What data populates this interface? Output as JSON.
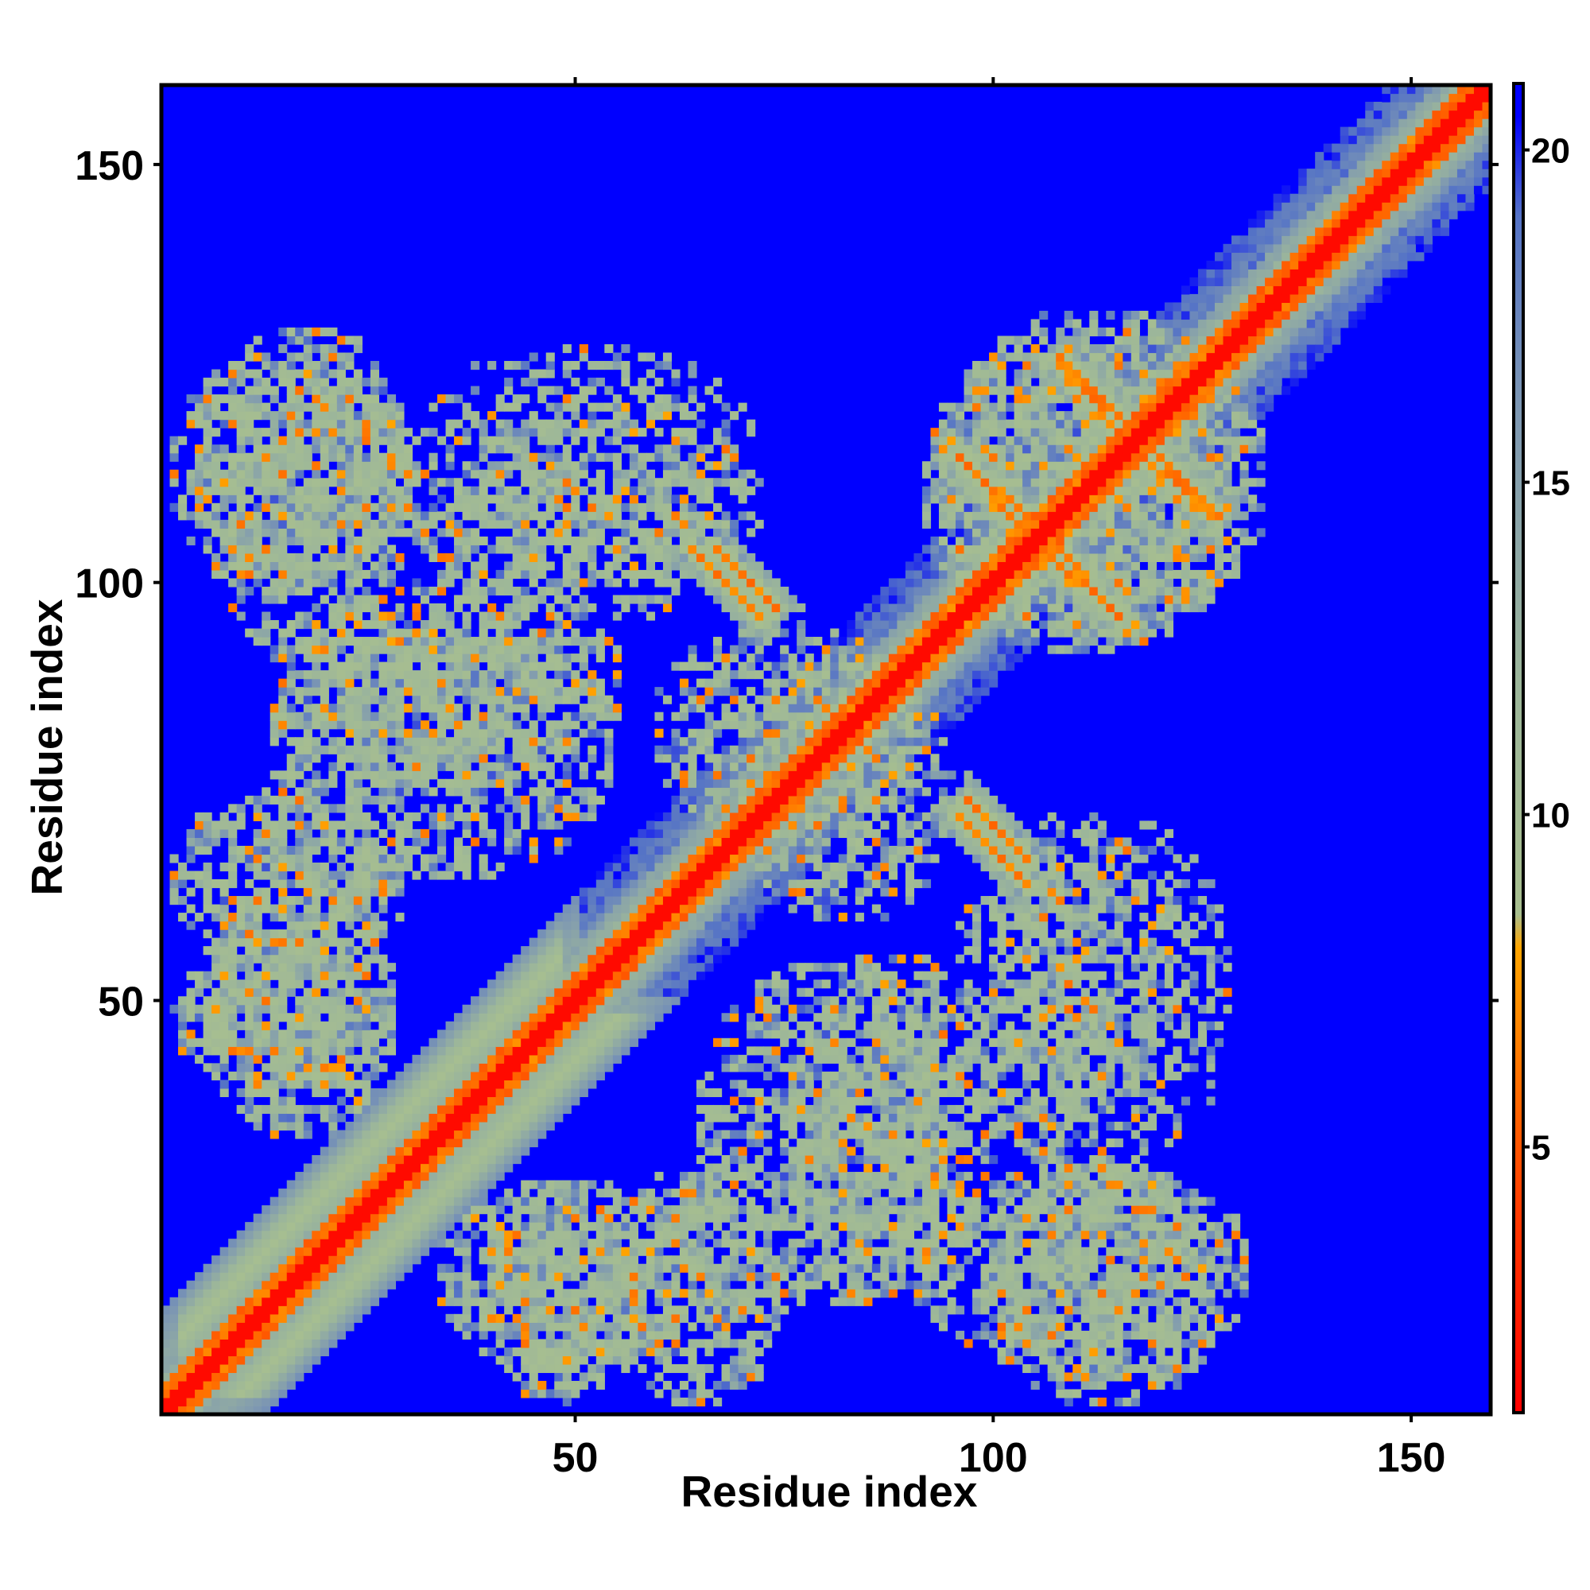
{
  "chart_data": {
    "type": "heatmap",
    "title": "",
    "xlabel": "Residue index",
    "ylabel": "Residue index",
    "xlim": [
      0.5,
      159.5
    ],
    "ylim": [
      0.5,
      159.5
    ],
    "n_residues": 159,
    "x_ticks": [
      50,
      100,
      150
    ],
    "y_ticks": [
      50,
      100,
      150
    ],
    "x_tick_labels": [
      "50",
      "100",
      "150"
    ],
    "y_tick_labels": [
      "50",
      "100",
      "150"
    ],
    "colorbar": {
      "range": [
        1,
        21
      ],
      "ticks": [
        5,
        10,
        15,
        20
      ],
      "tick_labels": [
        "5",
        "10",
        "15",
        "20"
      ],
      "stops": [
        {
          "value": 1,
          "color": "#ff0000"
        },
        {
          "value": 4,
          "color": "#ff3a00"
        },
        {
          "value": 8,
          "color": "#ffa500"
        },
        {
          "value": 8.5,
          "color": "#a8bf8f"
        },
        {
          "value": 12,
          "color": "#9cb69a"
        },
        {
          "value": 16,
          "color": "#7e98b2"
        },
        {
          "value": 19,
          "color": "#5573c6"
        },
        {
          "value": 20.5,
          "color": "#0000ff"
        }
      ]
    },
    "background_value": 21,
    "grid": false,
    "legend": "colorbar-right",
    "contact_features": [
      {
        "type": "diagonal",
        "from": 1,
        "to": 159,
        "width": 3.5
      },
      {
        "type": "band",
        "x_center": 18,
        "y_center": 18,
        "start": 2,
        "end": 48,
        "offset": 7,
        "width": 4
      },
      {
        "type": "antiparallel",
        "x_range": [
          64,
          72
        ],
        "y_range": [
          104,
          96
        ]
      },
      {
        "type": "antiparallel",
        "x_range": [
          97,
          106
        ],
        "y_range": [
          114,
          106
        ]
      },
      {
        "type": "antiparallel",
        "x_range": [
          106,
          115
        ],
        "y_range": [
          104,
          96
        ]
      },
      {
        "type": "antiparallel",
        "x_range": [
          108,
          118
        ],
        "y_range": [
          127,
          117
        ]
      },
      {
        "type": "antiparallel",
        "x_range": [
          115,
          126
        ],
        "y_range": [
          118,
          108
        ]
      },
      {
        "type": "parallel",
        "x_range": [
          97,
          104
        ],
        "y_range": [
          74,
          67
        ]
      },
      {
        "type": "region",
        "x_range": [
          2,
          30
        ],
        "y_range": [
          99,
          127
        ],
        "density": 0.75
      },
      {
        "type": "region",
        "x_range": [
          2,
          30
        ],
        "y_range": [
          55,
          75
        ],
        "density": 0.7
      },
      {
        "type": "region",
        "x_range": [
          2,
          28
        ],
        "y_range": [
          40,
          56
        ],
        "density": 0.7
      },
      {
        "type": "region",
        "x_range": [
          14,
          55
        ],
        "y_range": [
          76,
          100
        ],
        "density": 0.65
      },
      {
        "type": "region",
        "x_range": [
          30,
          70
        ],
        "y_range": [
          99,
          122
        ],
        "density": 0.5
      },
      {
        "type": "region",
        "x_range": [
          34,
          66
        ],
        "y_range": [
          6,
          28
        ],
        "density": 0.7
      },
      {
        "type": "region",
        "x_range": [
          65,
          96
        ],
        "y_range": [
          14,
          54
        ],
        "density": 0.65
      },
      {
        "type": "region",
        "x_range": [
          92,
          130
        ],
        "y_range": [
          6,
          30
        ],
        "density": 0.55
      },
      {
        "type": "region",
        "x_range": [
          96,
          128
        ],
        "y_range": [
          30,
          72
        ],
        "density": 0.45
      },
      {
        "type": "region",
        "x_range": [
          60,
          90
        ],
        "y_range": [
          70,
          95
        ],
        "density": 0.6
      },
      {
        "type": "region",
        "x_range": [
          94,
          130
        ],
        "y_range": [
          92,
          132
        ],
        "density": 0.6
      }
    ]
  }
}
